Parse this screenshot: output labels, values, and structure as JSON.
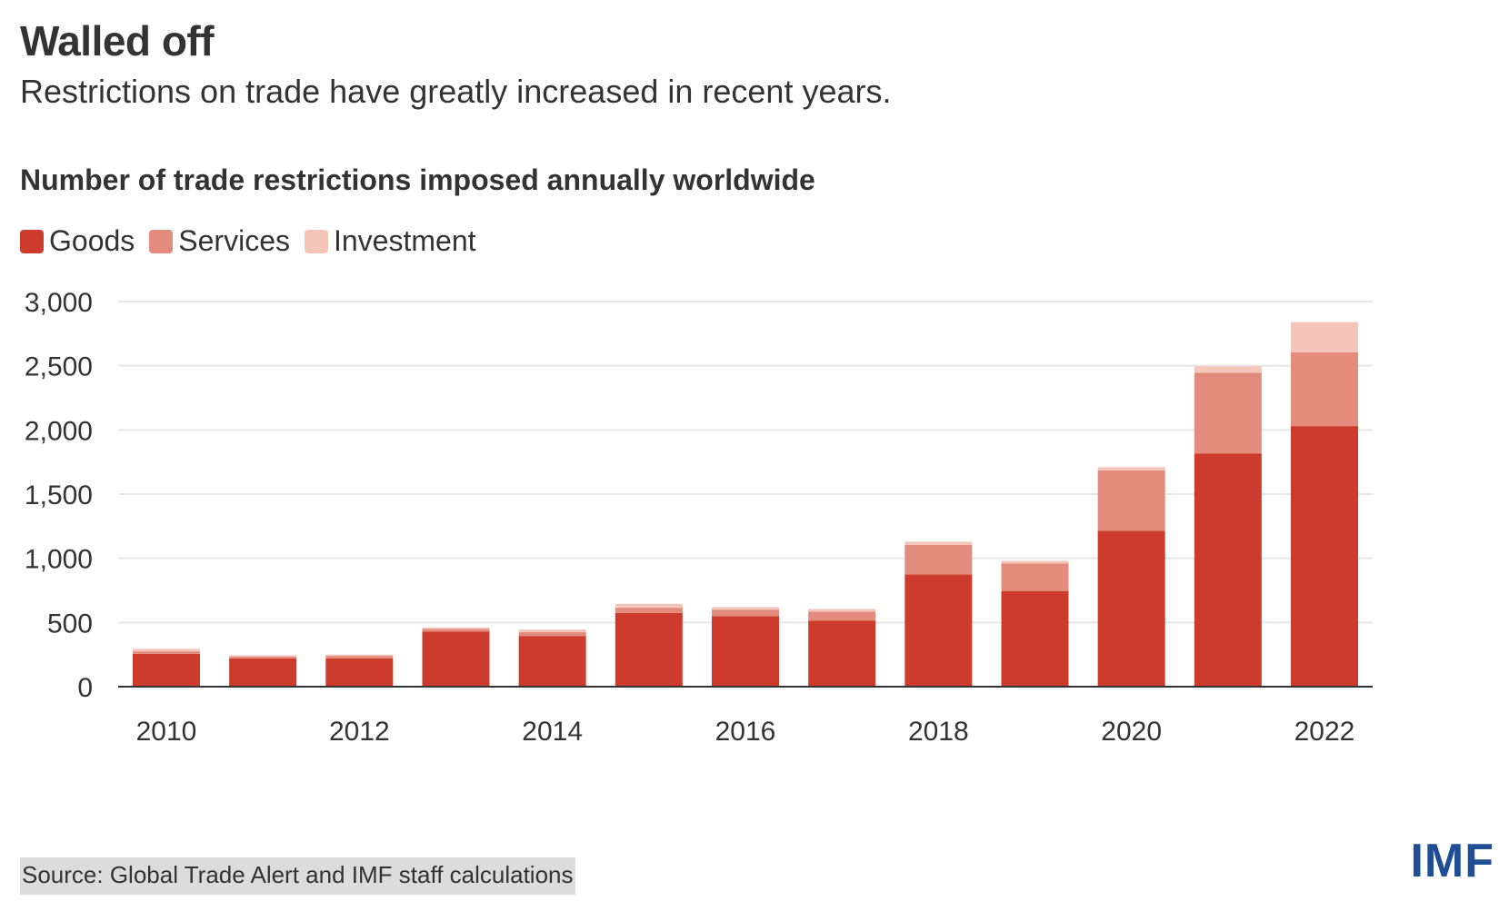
{
  "header": {
    "title": "Walled off",
    "subtitle": "Restrictions on trade have greatly increased in recent years."
  },
  "chart_data": {
    "type": "bar",
    "stacked": true,
    "title": "Number of trade restrictions imposed annually worldwide",
    "xlabel": "",
    "ylabel": "",
    "categories": [
      "2010",
      "2011",
      "2012",
      "2013",
      "2014",
      "2015",
      "2016",
      "2017",
      "2018",
      "2019",
      "2020",
      "2021",
      "2022"
    ],
    "x_tick_labels": [
      "2010",
      "2012",
      "2014",
      "2016",
      "2018",
      "2020",
      "2022"
    ],
    "y_ticks": [
      0,
      500,
      1000,
      1500,
      2000,
      2500,
      3000
    ],
    "y_tick_labels": [
      "0",
      "500",
      "1,000",
      "1,500",
      "2,000",
      "2,500",
      "3,000"
    ],
    "ylim": [
      0,
      3000
    ],
    "grid": true,
    "legend_position": "top-left",
    "series": [
      {
        "name": "Goods",
        "color": "#cc3b2b",
        "values": [
          255,
          220,
          220,
          430,
          395,
          575,
          550,
          515,
          875,
          745,
          1215,
          1815,
          2030
        ]
      },
      {
        "name": "Services",
        "color": "#e38c7e",
        "values": [
          20,
          15,
          20,
          20,
          30,
          40,
          50,
          70,
          230,
          215,
          470,
          630,
          575
        ]
      },
      {
        "name": "Investment",
        "color": "#f4c6b9",
        "values": [
          20,
          10,
          10,
          10,
          20,
          30,
          20,
          20,
          25,
          20,
          25,
          50,
          235
        ]
      }
    ]
  },
  "footer": {
    "source": "Source: Global Trade Alert and IMF staff calculations",
    "logo": "IMF"
  }
}
